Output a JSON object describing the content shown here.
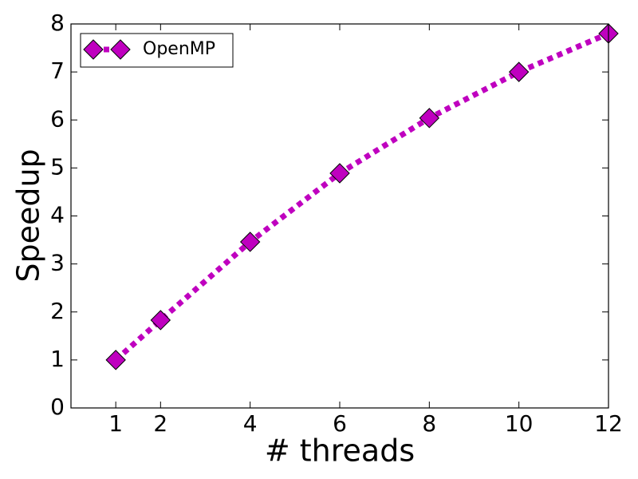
{
  "chart_data": {
    "type": "line",
    "x_label": "# threads",
    "y_label": "Speedup",
    "x": [
      1,
      2,
      4,
      6,
      8,
      10,
      12
    ],
    "series": [
      {
        "name": "OpenMP",
        "color": "#bf00bf",
        "values": [
          1.0,
          1.83,
          3.46,
          4.89,
          6.04,
          7.0,
          7.8
        ]
      }
    ],
    "xlim": [
      0,
      12
    ],
    "xticks": [
      1,
      2,
      4,
      6,
      8,
      10,
      12
    ],
    "ylim": [
      0,
      8
    ],
    "yticks": [
      0,
      1,
      2,
      3,
      4,
      5,
      6,
      7,
      8
    ],
    "legend": "upper left",
    "line_style": "dashed",
    "marker": "diamond"
  }
}
